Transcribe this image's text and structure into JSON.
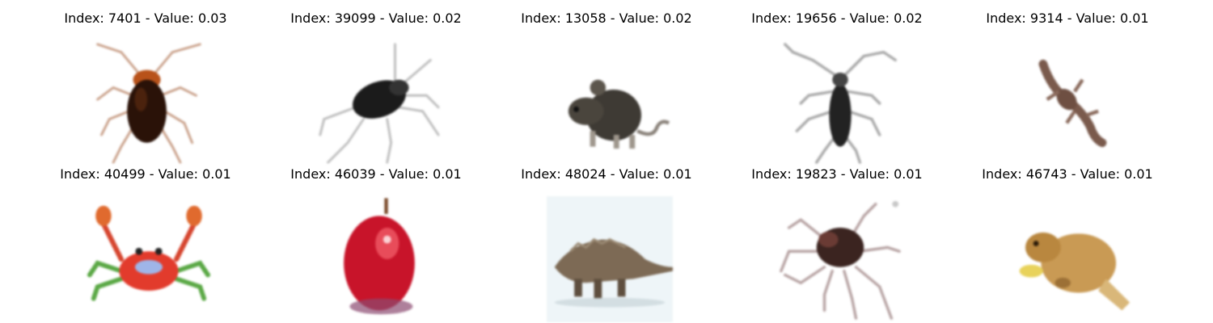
{
  "title_template": "Index: {index} - Value: {value}",
  "cells": [
    {
      "title": "Index: 7401 - Value: 0.03",
      "subject": "cockroach"
    },
    {
      "title": "Index: 39099 - Value: 0.02",
      "subject": "black beetle"
    },
    {
      "title": "Index: 13058 - Value: 0.02",
      "subject": "mouse"
    },
    {
      "title": "Index: 19656 - Value: 0.02",
      "subject": "longhorn beetle"
    },
    {
      "title": "Index: 9314 - Value: 0.01",
      "subject": "lizard"
    },
    {
      "title": "Index: 40499 - Value: 0.01",
      "subject": "crab"
    },
    {
      "title": "Index: 46039 - Value: 0.01",
      "subject": "apple"
    },
    {
      "title": "Index: 48024 - Value: 0.01",
      "subject": "dinosaur"
    },
    {
      "title": "Index: 19823 - Value: 0.01",
      "subject": "spider"
    },
    {
      "title": "Index: 46743 - Value: 0.01",
      "subject": "beaver"
    }
  ]
}
